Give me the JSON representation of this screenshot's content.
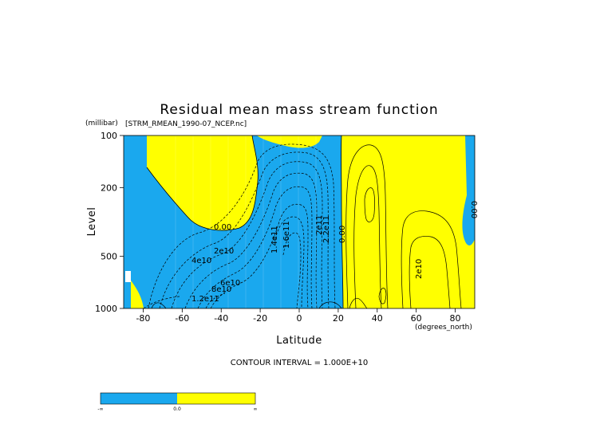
{
  "chart_data": {
    "type": "heatmap",
    "title": "Residual mean mass stream function",
    "subtitle": "[STRM_RMEAN_1990-07_NCEP.nc]",
    "xlabel": "Latitude",
    "xunits": "(degrees_north)",
    "ylabel": "Level",
    "yunits": "(millibar)",
    "xlim": [
      -90,
      90
    ],
    "ylim": [
      1000,
      100
    ],
    "yscale": "log",
    "xticks": [
      "-80",
      "-60",
      "-40",
      "-20",
      "0",
      "20",
      "40",
      "60",
      "80"
    ],
    "yticks": [
      "100",
      "200",
      "500",
      "1000"
    ],
    "contour_interval_text": "CONTOUR INTERVAL = 1.000E+10",
    "fill_colors": {
      "negative": "#1aa8ee",
      "positive": "#ffff00"
    },
    "contour_labels": [
      "0.00",
      "2e10",
      "4e10",
      "6e10",
      "8e10",
      "1.2e11",
      "1.4e11",
      "1.6e11",
      "2e11",
      "2.2e11",
      "0.00",
      "0.00",
      "2e10"
    ],
    "colorbar": {
      "labels": [
        "-∞",
        "0.0",
        "∞"
      ]
    }
  }
}
